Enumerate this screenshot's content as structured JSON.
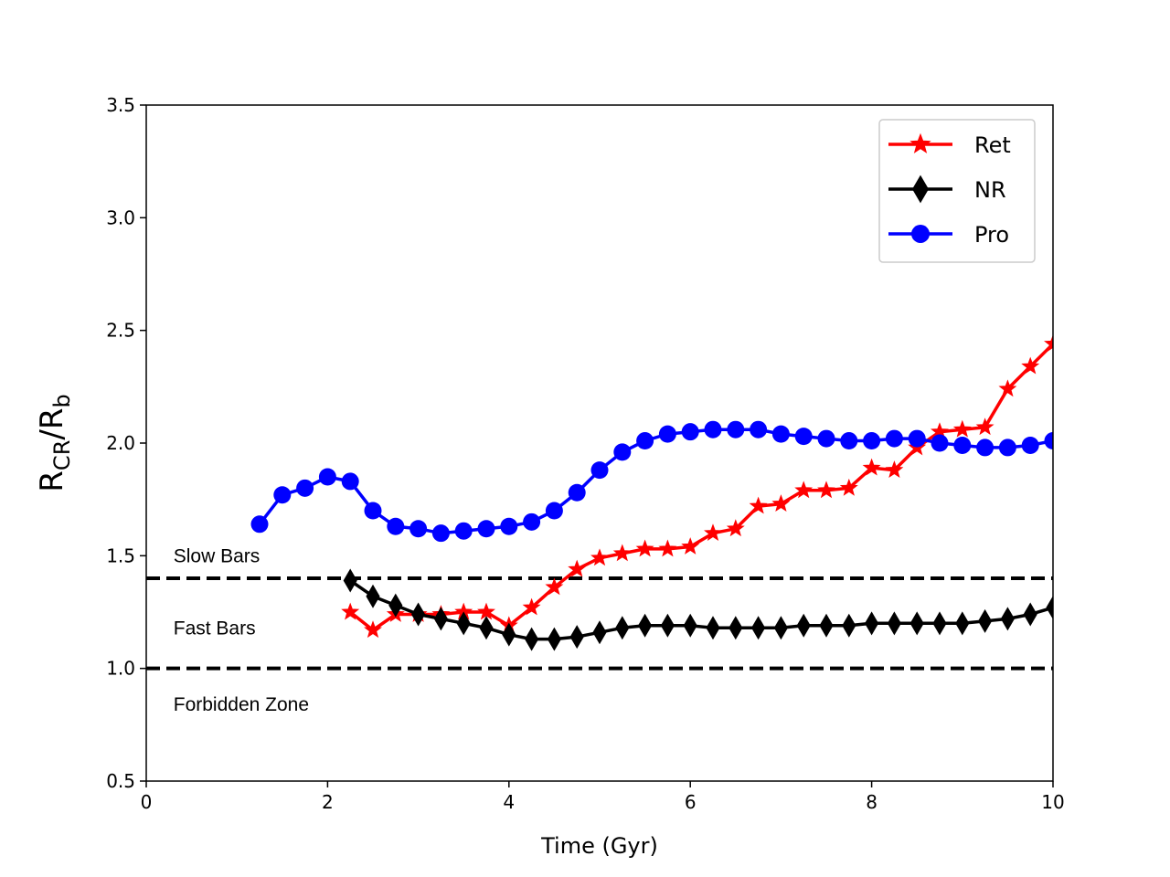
{
  "chart_data": {
    "type": "line",
    "title": "",
    "xlabel": "Time (Gyr)",
    "ylabel_main": "R",
    "ylabel_sub1": "CR",
    "ylabel_mid": "/R",
    "ylabel_sub2": "b",
    "xlim": [
      0,
      10
    ],
    "ylim": [
      0.5,
      3.5
    ],
    "xticks": [
      0,
      2,
      4,
      6,
      8,
      10
    ],
    "xtick_labels": [
      "0",
      "2",
      "4",
      "6",
      "8",
      "10"
    ],
    "yticks": [
      0.5,
      1.0,
      1.5,
      2.0,
      2.5,
      3.0,
      3.5
    ],
    "ytick_labels": [
      "0.5",
      "1.0",
      "1.5",
      "2.0",
      "2.5",
      "3.0",
      "3.5"
    ],
    "grid": false,
    "legend_position": "top-right",
    "reference_lines": [
      {
        "name": "slow-fast-boundary",
        "y": 1.4,
        "style": "dashed",
        "color": "#000000"
      },
      {
        "name": "fast-forbidden-boundary",
        "y": 1.0,
        "style": "dashed",
        "color": "#000000"
      }
    ],
    "annotations": [
      {
        "text": "Slow Bars",
        "x": 0.3,
        "y": 1.5
      },
      {
        "text": "Fast Bars",
        "x": 0.3,
        "y": 1.18
      },
      {
        "text": "Forbidden Zone",
        "x": 0.3,
        "y": 0.84
      }
    ],
    "series": [
      {
        "name": "Ret",
        "color": "#ff0000",
        "marker": "star",
        "x": [
          2.25,
          2.5,
          2.75,
          3.0,
          3.25,
          3.5,
          3.75,
          4.0,
          4.25,
          4.5,
          4.75,
          5.0,
          5.25,
          5.5,
          5.75,
          6.0,
          6.25,
          6.5,
          6.75,
          7.0,
          7.25,
          7.5,
          7.75,
          8.0,
          8.25,
          8.5,
          8.75,
          9.0,
          9.25,
          9.5,
          9.75,
          10.0
        ],
        "values": [
          1.25,
          1.17,
          1.24,
          1.24,
          1.24,
          1.25,
          1.25,
          1.19,
          1.27,
          1.36,
          1.44,
          1.49,
          1.51,
          1.53,
          1.53,
          1.54,
          1.6,
          1.62,
          1.72,
          1.73,
          1.79,
          1.79,
          1.8,
          1.89,
          1.88,
          1.98,
          2.05,
          2.06,
          2.07,
          2.24,
          2.34,
          2.44
        ]
      },
      {
        "name": "NR",
        "color": "#000000",
        "marker": "thin-diamond",
        "x": [
          2.25,
          2.5,
          2.75,
          3.0,
          3.25,
          3.5,
          3.75,
          4.0,
          4.25,
          4.5,
          4.75,
          5.0,
          5.25,
          5.5,
          5.75,
          6.0,
          6.25,
          6.5,
          6.75,
          7.0,
          7.25,
          7.5,
          7.75,
          8.0,
          8.25,
          8.5,
          8.75,
          9.0,
          9.25,
          9.5,
          9.75,
          10.0
        ],
        "values": [
          1.39,
          1.32,
          1.28,
          1.24,
          1.22,
          1.2,
          1.18,
          1.15,
          1.13,
          1.13,
          1.14,
          1.16,
          1.18,
          1.19,
          1.19,
          1.19,
          1.18,
          1.18,
          1.18,
          1.18,
          1.19,
          1.19,
          1.19,
          1.2,
          1.2,
          1.2,
          1.2,
          1.2,
          1.21,
          1.22,
          1.24,
          1.27
        ]
      },
      {
        "name": "Pro",
        "color": "#0000ff",
        "marker": "circle",
        "x": [
          1.25,
          1.5,
          1.75,
          2.0,
          2.25,
          2.5,
          2.75,
          3.0,
          3.25,
          3.5,
          3.75,
          4.0,
          4.25,
          4.5,
          4.75,
          5.0,
          5.25,
          5.5,
          5.75,
          6.0,
          6.25,
          6.5,
          6.75,
          7.0,
          7.25,
          7.5,
          7.75,
          8.0,
          8.25,
          8.5,
          8.75,
          9.0,
          9.25,
          9.5,
          9.75,
          10.0
        ],
        "values": [
          1.64,
          1.77,
          1.8,
          1.85,
          1.83,
          1.7,
          1.63,
          1.62,
          1.6,
          1.61,
          1.62,
          1.63,
          1.65,
          1.7,
          1.78,
          1.88,
          1.96,
          2.01,
          2.04,
          2.05,
          2.06,
          2.06,
          2.06,
          2.04,
          2.03,
          2.02,
          2.01,
          2.01,
          2.02,
          2.02,
          2.0,
          1.99,
          1.98,
          1.98,
          1.99,
          2.01
        ]
      }
    ]
  }
}
